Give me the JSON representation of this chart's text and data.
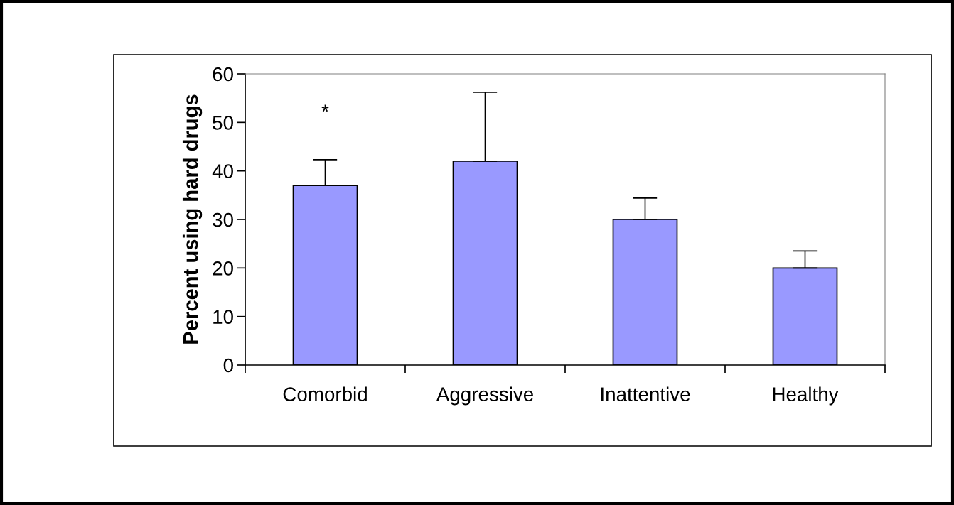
{
  "chart_data": {
    "type": "bar",
    "ylabel": "Percent using hard drugs",
    "categories": [
      "Comorbid",
      "Aggressive",
      "Inattentive",
      "Healthy"
    ],
    "values": [
      37,
      42,
      30,
      20
    ],
    "errors": [
      [
        37,
        42.3
      ],
      [
        42,
        56.2
      ],
      [
        30,
        34.4
      ],
      [
        20,
        23.5
      ]
    ],
    "color": "#9999ff",
    "ylim": [
      0,
      60
    ],
    "yticks": [
      0,
      10,
      20,
      30,
      40,
      50,
      60
    ],
    "annotations": [
      "*"
    ],
    "grid": false,
    "legend": false
  }
}
